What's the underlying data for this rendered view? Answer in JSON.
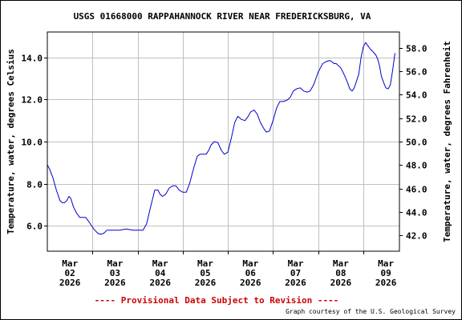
{
  "chart_data": {
    "type": "line",
    "title": "USGS 01668000 RAPPAHANNOCK RIVER NEAR FREDERICKSBURG, VA",
    "ylabel": "Temperature, water, degrees Celsius",
    "ylabel_right": "Temperature, water, degrees Fahrenheit",
    "ylim": [
      4.8,
      15.2
    ],
    "ylim_right": [
      40.64,
      59.36
    ],
    "yticks": [
      6.0,
      8.0,
      10.0,
      12.0,
      14.0
    ],
    "ytick_labels": [
      "6.0",
      "8.0",
      "10.0",
      "12.0",
      "14.0"
    ],
    "yticks_right": [
      42.0,
      44.0,
      46.0,
      48.0,
      50.0,
      52.0,
      54.0,
      56.0,
      58.0
    ],
    "ytick_labels_right": [
      "42.0",
      "44.0",
      "46.0",
      "48.0",
      "50.0",
      "52.0",
      "54.0",
      "56.0",
      "58.0"
    ],
    "xlim": [
      0,
      7.8
    ],
    "x_label_positions": [
      0.5,
      1.5,
      2.5,
      3.5,
      4.5,
      5.5,
      6.5,
      7.5
    ],
    "x_minor_positions": [
      1,
      2,
      3,
      4,
      5,
      6,
      7
    ],
    "x_ticks": [
      {
        "month": "Mar",
        "day": "02",
        "year": "2026"
      },
      {
        "month": "Mar",
        "day": "03",
        "year": "2026"
      },
      {
        "month": "Mar",
        "day": "04",
        "year": "2026"
      },
      {
        "month": "Mar",
        "day": "05",
        "year": "2026"
      },
      {
        "month": "Mar",
        "day": "06",
        "year": "2026"
      },
      {
        "month": "Mar",
        "day": "07",
        "year": "2026"
      },
      {
        "month": "Mar",
        "day": "08",
        "year": "2026"
      },
      {
        "month": "Mar",
        "day": "09",
        "year": "2026"
      }
    ],
    "grid": true,
    "series": [
      {
        "color": "#0000cc",
        "x": [
          0.0,
          0.05,
          0.12,
          0.2,
          0.28,
          0.33,
          0.38,
          0.43,
          0.48,
          0.52,
          0.58,
          0.65,
          0.72,
          0.8,
          0.85,
          0.92,
          0.98,
          1.05,
          1.12,
          1.18,
          1.25,
          1.32,
          1.4,
          1.5,
          1.6,
          1.75,
          1.9,
          2.0,
          2.08,
          2.12,
          2.2,
          2.3,
          2.38,
          2.45,
          2.5,
          2.55,
          2.62,
          2.7,
          2.78,
          2.85,
          2.92,
          3.0,
          3.08,
          3.15,
          3.25,
          3.32,
          3.38,
          3.45,
          3.52,
          3.58,
          3.63,
          3.7,
          3.78,
          3.85,
          3.92,
          4.0,
          4.08,
          4.15,
          4.22,
          4.3,
          4.38,
          4.45,
          4.5,
          4.58,
          4.65,
          4.72,
          4.8,
          4.85,
          4.92,
          5.0,
          5.08,
          5.15,
          5.22,
          5.3,
          5.38,
          5.45,
          5.52,
          5.6,
          5.68,
          5.75,
          5.82,
          5.9,
          5.95,
          6.0,
          6.05,
          6.1,
          6.18,
          6.25,
          6.3,
          6.35,
          6.4,
          6.45,
          6.5,
          6.55,
          6.6,
          6.65,
          6.7,
          6.75,
          6.8,
          6.9,
          6.95,
          7.0,
          7.05,
          7.1,
          7.15,
          7.2,
          7.28,
          7.32,
          7.36,
          7.4,
          7.45,
          7.5,
          7.55,
          7.6,
          7.65,
          7.7
        ],
        "y": [
          8.9,
          8.7,
          8.3,
          7.7,
          7.2,
          7.1,
          7.1,
          7.2,
          7.4,
          7.3,
          6.9,
          6.6,
          6.4,
          6.4,
          6.4,
          6.2,
          6.0,
          5.8,
          5.65,
          5.6,
          5.65,
          5.8,
          5.8,
          5.8,
          5.8,
          5.85,
          5.8,
          5.8,
          5.8,
          5.8,
          6.1,
          7.0,
          7.7,
          7.7,
          7.5,
          7.4,
          7.5,
          7.8,
          7.9,
          7.9,
          7.7,
          7.6,
          7.6,
          8.0,
          8.8,
          9.3,
          9.4,
          9.4,
          9.4,
          9.6,
          9.85,
          10.0,
          9.95,
          9.6,
          9.4,
          9.5,
          10.2,
          10.9,
          11.2,
          11.05,
          11.0,
          11.2,
          11.4,
          11.5,
          11.3,
          10.9,
          10.6,
          10.45,
          10.5,
          11.0,
          11.6,
          11.9,
          11.9,
          11.95,
          12.1,
          12.4,
          12.5,
          12.55,
          12.4,
          12.35,
          12.4,
          12.7,
          13.0,
          13.3,
          13.5,
          13.7,
          13.8,
          13.85,
          13.8,
          13.7,
          13.7,
          13.6,
          13.5,
          13.3,
          13.05,
          12.8,
          12.5,
          12.4,
          12.55,
          13.2,
          14.0,
          14.5,
          14.7,
          14.55,
          14.4,
          14.3,
          14.1,
          13.9,
          13.6,
          13.1,
          12.8,
          12.55,
          12.5,
          12.7,
          13.4,
          14.2
        ]
      }
    ]
  },
  "footer": {
    "provisional": "---- Provisional Data Subject to Revision ----",
    "credit": "Graph courtesy of the U.S. Geological Survey"
  }
}
